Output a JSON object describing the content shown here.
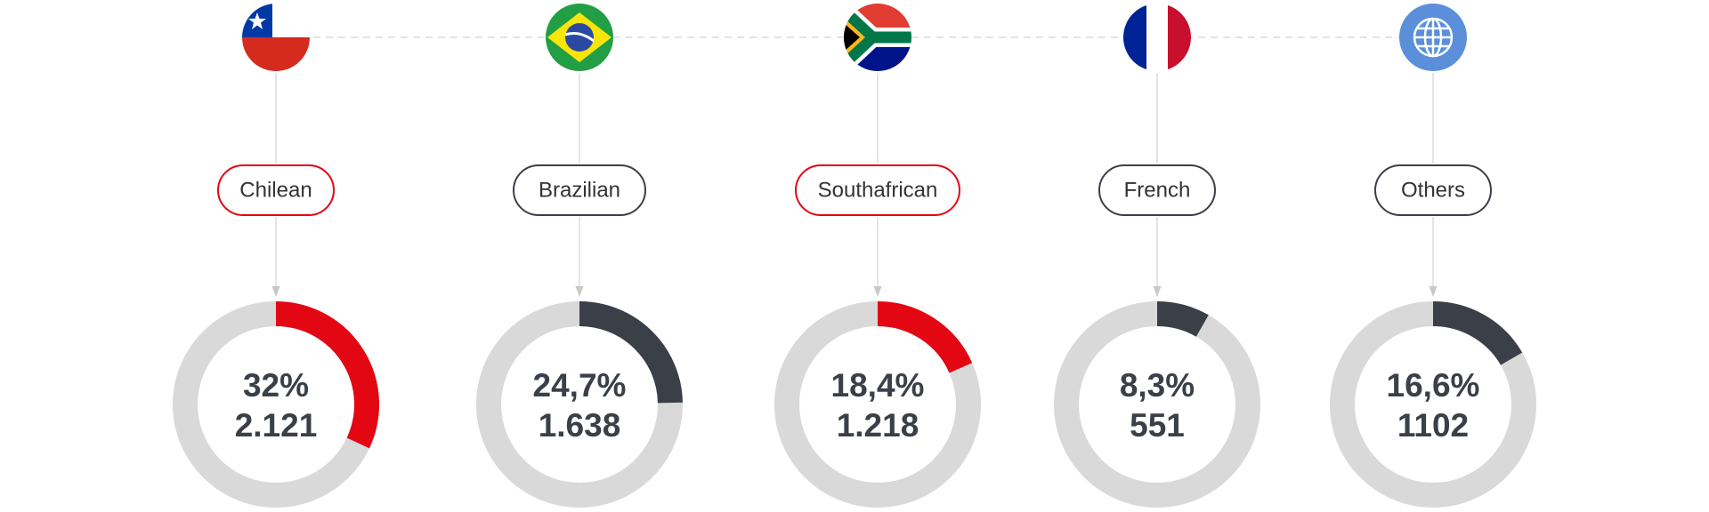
{
  "chart_data": [
    {
      "type": "donut",
      "title": "Chilean",
      "values": [
        32,
        2121
      ],
      "value_labels": [
        "32%",
        "2.121"
      ],
      "color": "#e30613"
    },
    {
      "type": "donut",
      "title": "Brazilian",
      "values": [
        24.7,
        1638
      ],
      "value_labels": [
        "24,7%",
        "1.638"
      ],
      "color": "#3a3f48"
    },
    {
      "type": "donut",
      "title": "Southafrican",
      "values": [
        18.4,
        1218
      ],
      "value_labels": [
        "18,4%",
        "1.218"
      ],
      "color": "#e30613"
    },
    {
      "type": "donut",
      "title": "French",
      "values": [
        8.3,
        551
      ],
      "value_labels": [
        "8,3%",
        "551"
      ],
      "color": "#3a3f48"
    },
    {
      "type": "donut",
      "title": "Others",
      "values": [
        16.6,
        1102
      ],
      "value_labels": [
        "16,6%",
        "1102"
      ],
      "color": "#3a3f48"
    }
  ]
}
